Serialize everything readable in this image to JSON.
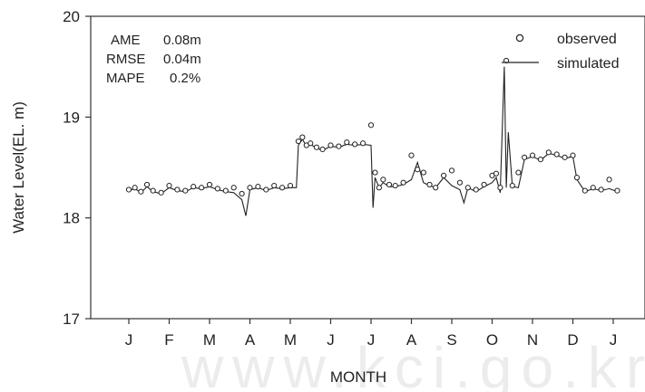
{
  "chart_data": {
    "type": "line",
    "xlabel": "MONTH",
    "ylabel": "Water Level(EL. m)",
    "ylim": [
      17,
      20
    ],
    "yticks": [
      17,
      18,
      19,
      20
    ],
    "xlim": [
      0,
      12.6
    ],
    "months": [
      "J",
      "F",
      "M",
      "A",
      "M",
      "J",
      "J",
      "A",
      "S",
      "O",
      "N",
      "D",
      "J"
    ],
    "grid": false,
    "legend_position": "top-right",
    "stats": [
      {
        "label": "AME",
        "value": "0.08m"
      },
      {
        "label": "RMSE",
        "value": "0.04m"
      },
      {
        "label": "MAPE",
        "value": "0.2%"
      }
    ],
    "series": [
      {
        "name": "observed",
        "style": "open-circle",
        "x": [
          0.0,
          0.15,
          0.3,
          0.45,
          0.6,
          0.8,
          1.0,
          1.2,
          1.4,
          1.6,
          1.8,
          2.0,
          2.2,
          2.4,
          2.6,
          2.8,
          3.0,
          3.2,
          3.4,
          3.6,
          3.8,
          4.0,
          4.2,
          4.3,
          4.4,
          4.5,
          4.65,
          4.8,
          5.0,
          5.2,
          5.4,
          5.6,
          5.8,
          6.0,
          6.1,
          6.2,
          6.3,
          6.45,
          6.6,
          6.8,
          7.0,
          7.15,
          7.3,
          7.45,
          7.6,
          7.8,
          8.0,
          8.2,
          8.4,
          8.6,
          8.8,
          9.0,
          9.1,
          9.2,
          9.35,
          9.5,
          9.65,
          9.8,
          10.0,
          10.2,
          10.4,
          10.6,
          10.8,
          11.0,
          11.1,
          11.3,
          11.5,
          11.7,
          11.9,
          12.1
        ],
        "y": [
          18.28,
          18.3,
          18.26,
          18.33,
          18.27,
          18.25,
          18.32,
          18.28,
          18.27,
          18.31,
          18.3,
          18.33,
          18.29,
          18.27,
          18.3,
          18.24,
          18.3,
          18.31,
          18.28,
          18.32,
          18.3,
          18.32,
          18.76,
          18.8,
          18.72,
          18.74,
          18.7,
          18.68,
          18.72,
          18.71,
          18.75,
          18.73,
          18.74,
          18.92,
          18.45,
          18.3,
          18.38,
          18.33,
          18.32,
          18.35,
          18.62,
          18.48,
          18.45,
          18.33,
          18.3,
          18.42,
          18.47,
          18.35,
          18.3,
          18.28,
          18.33,
          18.42,
          18.44,
          18.3,
          19.56,
          18.32,
          18.45,
          18.6,
          18.62,
          18.58,
          18.65,
          18.63,
          18.6,
          18.62,
          18.4,
          18.27,
          18.3,
          18.28,
          18.38,
          18.27
        ]
      },
      {
        "name": "simulated",
        "style": "line",
        "x": [
          0.0,
          0.15,
          0.3,
          0.45,
          0.6,
          0.8,
          1.0,
          1.2,
          1.4,
          1.6,
          1.8,
          2.0,
          2.2,
          2.4,
          2.6,
          2.8,
          2.9,
          3.0,
          3.2,
          3.4,
          3.6,
          3.8,
          4.0,
          4.15,
          4.2,
          4.3,
          4.4,
          4.5,
          4.65,
          4.8,
          5.0,
          5.2,
          5.4,
          5.6,
          5.8,
          6.0,
          6.05,
          6.1,
          6.2,
          6.3,
          6.45,
          6.6,
          6.8,
          7.0,
          7.15,
          7.3,
          7.45,
          7.6,
          7.8,
          8.0,
          8.2,
          8.3,
          8.4,
          8.6,
          8.8,
          9.0,
          9.1,
          9.2,
          9.3,
          9.35,
          9.4,
          9.5,
          9.65,
          9.8,
          10.0,
          10.2,
          10.4,
          10.6,
          10.8,
          11.0,
          11.1,
          11.3,
          11.5,
          11.7,
          11.9,
          12.1
        ],
        "y": [
          18.27,
          18.29,
          18.25,
          18.31,
          18.26,
          18.24,
          18.3,
          18.27,
          18.26,
          18.3,
          18.29,
          18.31,
          18.28,
          18.26,
          18.25,
          18.18,
          18.02,
          18.28,
          18.3,
          18.27,
          18.3,
          18.29,
          18.3,
          18.3,
          18.72,
          18.78,
          18.71,
          18.73,
          18.69,
          18.67,
          18.71,
          18.7,
          18.73,
          18.72,
          18.73,
          18.72,
          18.1,
          18.4,
          18.3,
          18.35,
          18.31,
          18.31,
          18.33,
          18.38,
          18.55,
          18.35,
          18.32,
          18.3,
          18.4,
          18.32,
          18.28,
          18.15,
          18.3,
          18.26,
          18.31,
          18.35,
          18.4,
          18.25,
          19.5,
          18.3,
          18.85,
          18.31,
          18.3,
          18.58,
          18.61,
          18.57,
          18.64,
          18.62,
          18.59,
          18.61,
          18.38,
          18.26,
          18.29,
          18.27,
          18.29,
          18.26
        ]
      }
    ]
  },
  "watermark_text": "www.kci.go.kr"
}
